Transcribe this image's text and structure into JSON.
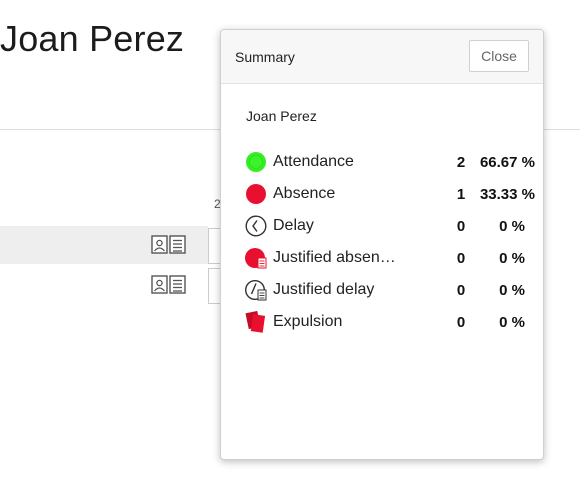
{
  "page": {
    "title": "Joan Perez",
    "column_hint": "2"
  },
  "summary": {
    "title": "Summary",
    "close_label": "Close",
    "student_name": "Joan Perez",
    "stats": [
      {
        "icon": "green-dot-icon",
        "label": "Attendance",
        "count": "2",
        "percent": "66.67 %",
        "color": "#33ee22"
      },
      {
        "icon": "red-dot-icon",
        "label": "Absence",
        "count": "1",
        "percent": "33.33 %",
        "color": "#e8102e"
      },
      {
        "icon": "clock-icon",
        "label": "Delay",
        "count": "0",
        "percent": "0 %"
      },
      {
        "icon": "red-dot-document-icon",
        "label": "Justified absen…",
        "count": "0",
        "percent": "0 %",
        "color": "#e8102e"
      },
      {
        "icon": "clock-document-icon",
        "label": "Justified delay",
        "count": "0",
        "percent": "0 %"
      },
      {
        "icon": "red-card-icon",
        "label": "Expulsion",
        "count": "0",
        "percent": "0 %",
        "color": "#e8102e"
      }
    ]
  }
}
